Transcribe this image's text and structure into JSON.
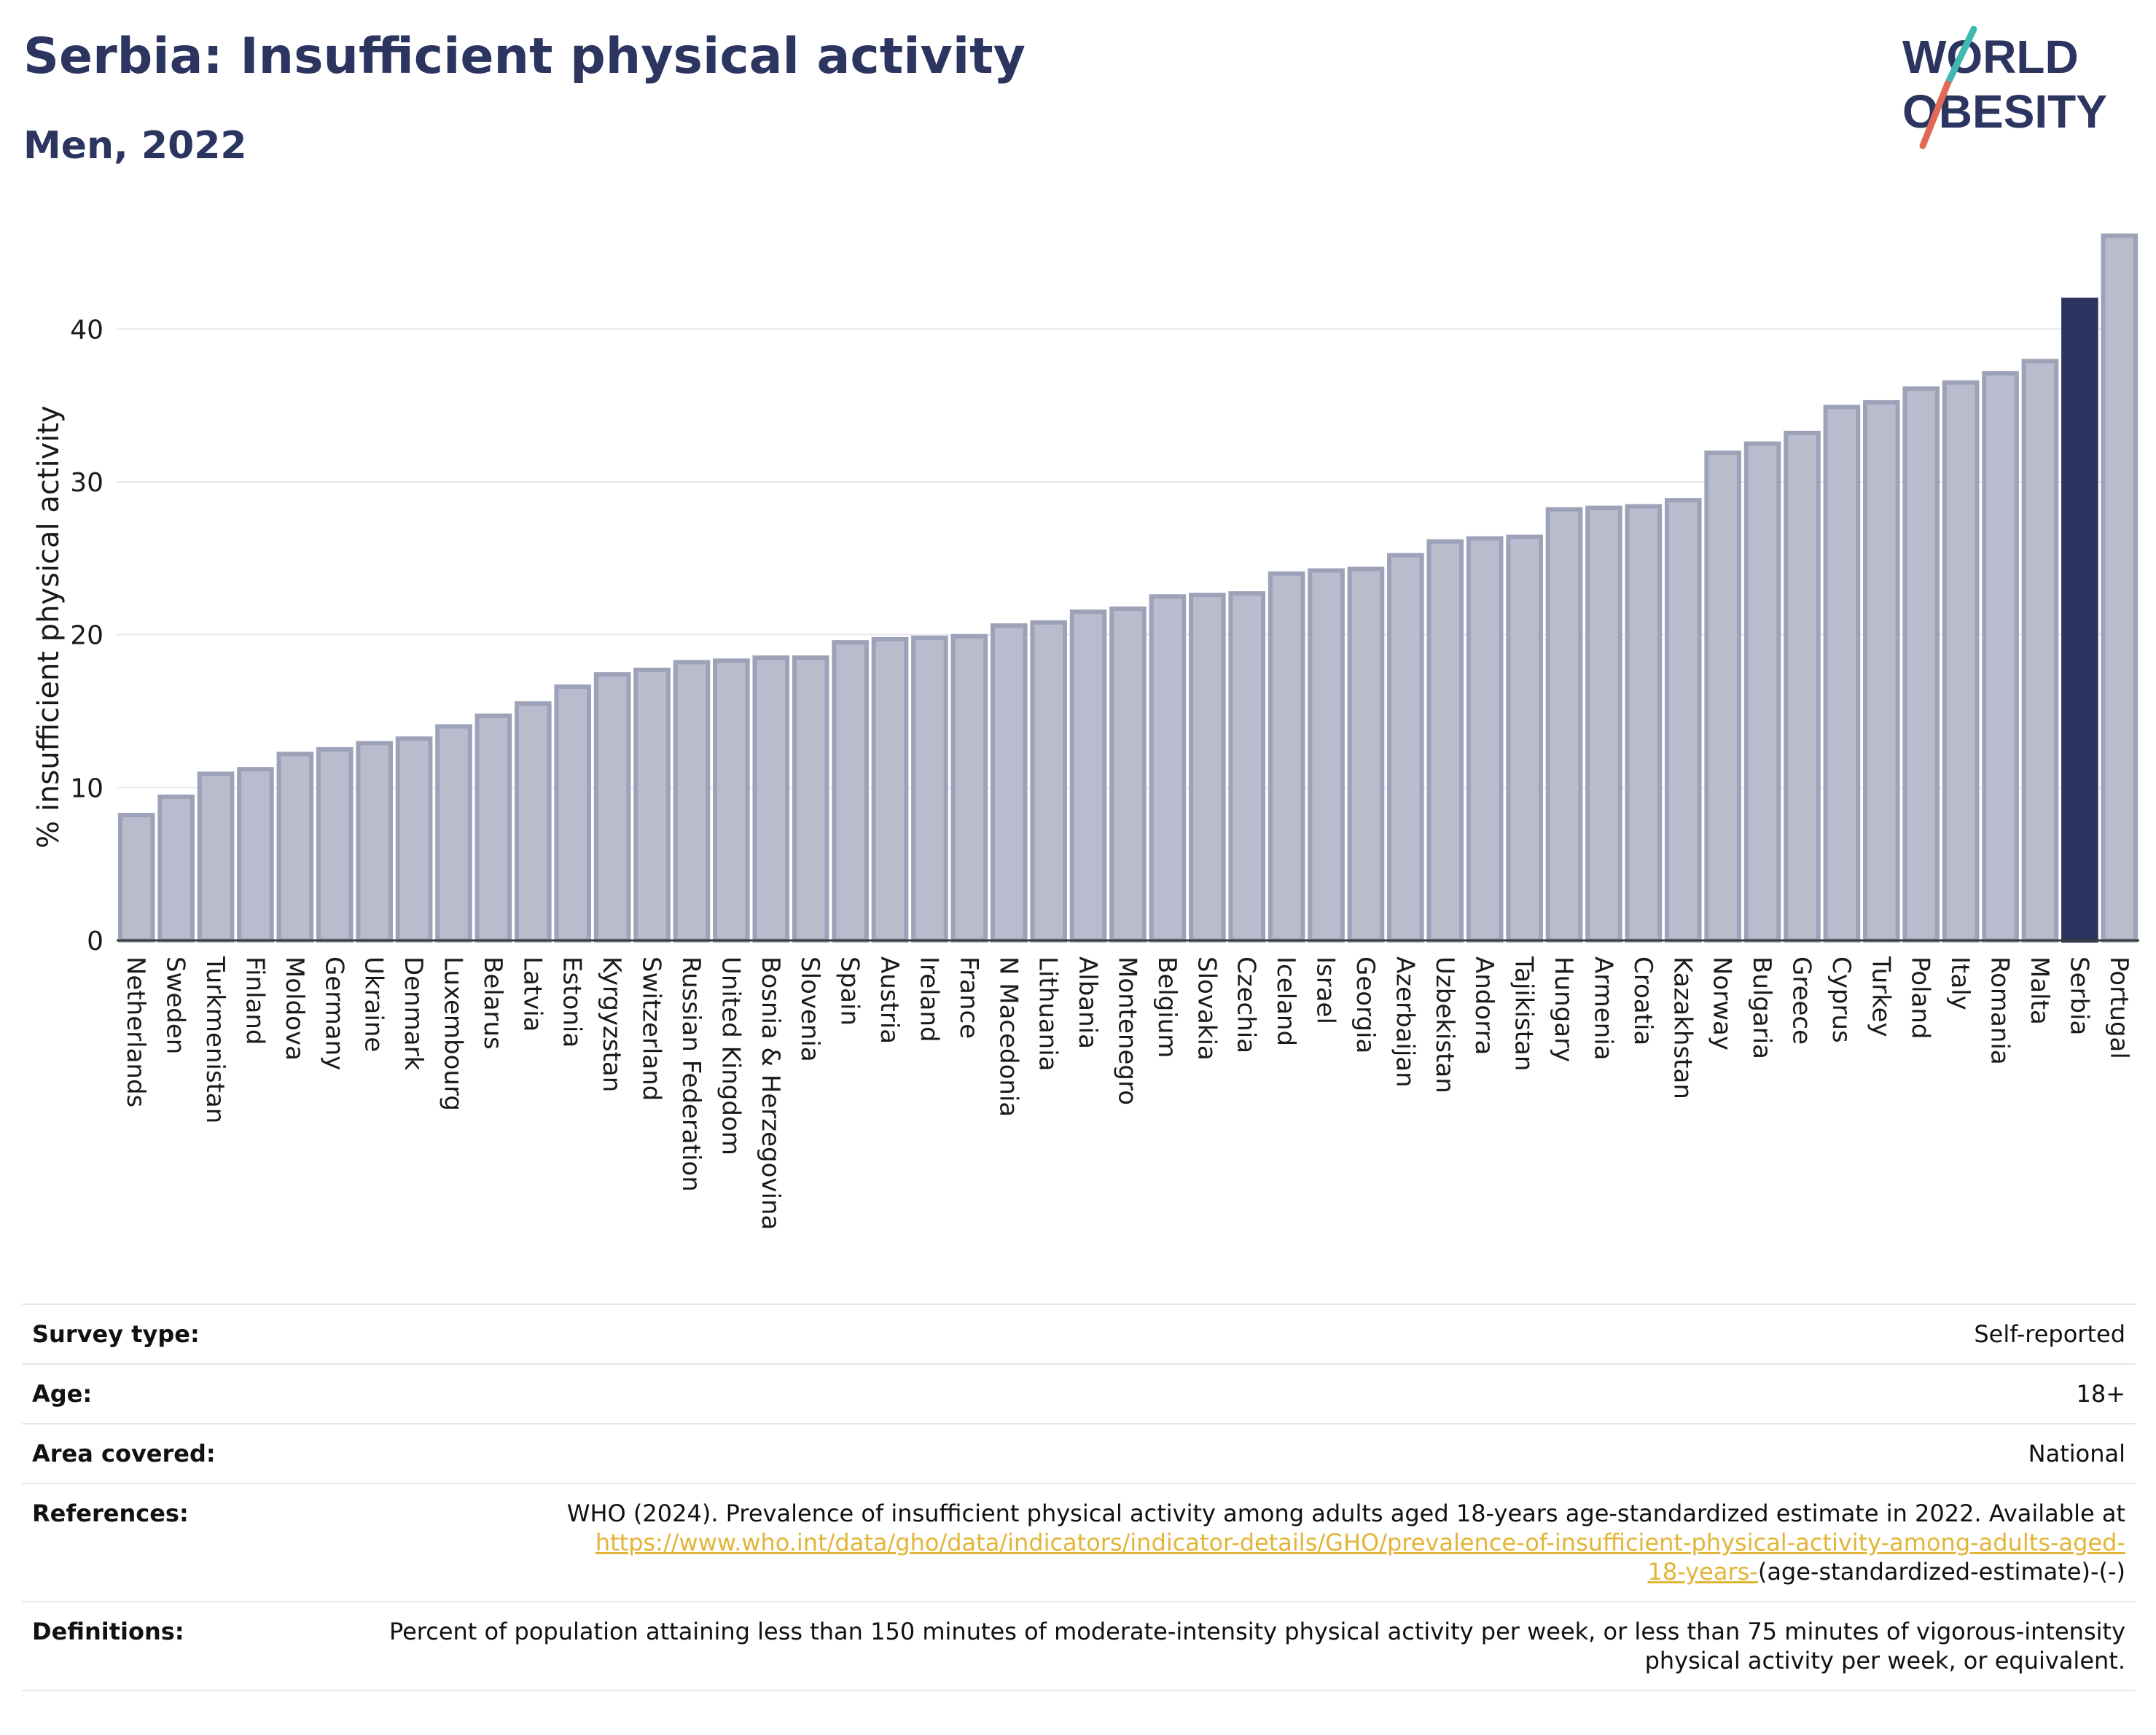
{
  "header": {
    "title": "Serbia: Insufficient physical activity",
    "subtitle": "Men, 2022",
    "logo_line1": "WORLD",
    "logo_line2": "OBESITY"
  },
  "chart_data": {
    "type": "bar",
    "ylabel": "% insufficient physical activity",
    "ylim": [
      0,
      46.5
    ],
    "yticks": [
      0,
      10,
      20,
      30,
      40
    ],
    "grid": true,
    "highlight": "Serbia",
    "colors": {
      "bar": "#b9bccd",
      "bar_edge": "#9da2b8",
      "highlight": "#2b3560"
    },
    "categories": [
      "Netherlands",
      "Sweden",
      "Turkmenistan",
      "Finland",
      "Moldova",
      "Germany",
      "Ukraine",
      "Denmark",
      "Luxembourg",
      "Belarus",
      "Latvia",
      "Estonia",
      "Kyrgyzstan",
      "Switzerland",
      "Russian Federation",
      "United Kingdom",
      "Bosnia & Herzegovina",
      "Slovenia",
      "Spain",
      "Austria",
      "Ireland",
      "France",
      "N Macedonia",
      "Lithuania",
      "Albania",
      "Montenegro",
      "Belgium",
      "Slovakia",
      "Czechia",
      "Iceland",
      "Israel",
      "Georgia",
      "Azerbaijan",
      "Uzbekistan",
      "Andorra",
      "Tajikistan",
      "Hungary",
      "Armenia",
      "Croatia",
      "Kazakhstan",
      "Norway",
      "Bulgaria",
      "Greece",
      "Cyprus",
      "Turkey",
      "Poland",
      "Italy",
      "Romania",
      "Malta",
      "Serbia",
      "Portugal"
    ],
    "values": [
      8.2,
      9.4,
      10.9,
      11.2,
      12.2,
      12.5,
      12.9,
      13.2,
      14.0,
      14.7,
      15.5,
      16.6,
      17.4,
      17.7,
      18.2,
      18.3,
      18.5,
      18.5,
      19.5,
      19.7,
      19.8,
      19.9,
      20.6,
      20.8,
      21.5,
      21.7,
      22.5,
      22.6,
      22.7,
      24.0,
      24.2,
      24.3,
      25.2,
      26.1,
      26.3,
      26.4,
      28.2,
      28.3,
      28.4,
      28.8,
      31.9,
      32.5,
      33.2,
      34.9,
      35.2,
      36.1,
      36.5,
      37.1,
      37.9,
      41.9,
      46.1
    ]
  },
  "info": {
    "survey_type": {
      "label": "Survey type:",
      "value": "Self-reported"
    },
    "age": {
      "label": "Age:",
      "value": "18+"
    },
    "area": {
      "label": "Area covered:",
      "value": "National"
    },
    "references": {
      "label": "References:",
      "text": "WHO (2024). Prevalence of insufficient physical activity among adults aged 18-years age-standardized estimate in 2022. Available at",
      "link_part1": "https://www.who.int/data/gho/data/indicators/indicator-details/GHO/prevalence-of-insufficient-physical-activity-among-adults-aged-",
      "link_part2": "18-years-",
      "suffix": "(age-standardized-estimate)-(-)"
    },
    "definitions": {
      "label": "Definitions:",
      "value": "Percent of population attaining less than 150 minutes of moderate-intensity physical activity per week, or less than 75 minutes of vigorous-intensity physical activity per week, or equivalent."
    }
  }
}
